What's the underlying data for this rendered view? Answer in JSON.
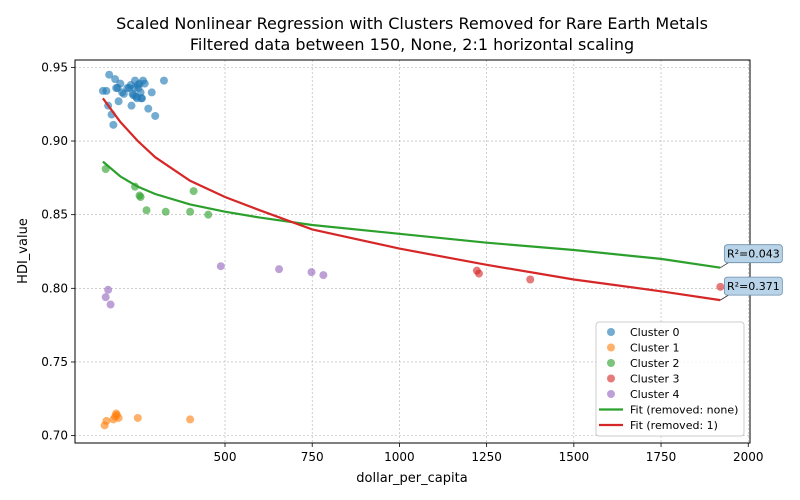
{
  "chart_data": {
    "type": "scatter",
    "title": "Scaled Nonlinear Regression with Clusters Removed for Rare Earth Metals",
    "subtitle": "Filtered data between 150, None, 2:1 horizontal scaling",
    "xlabel": "dollar_per_capita",
    "ylabel": "HDI_value",
    "xlim": [
      70,
      2005
    ],
    "ylim": [
      0.695,
      0.955
    ],
    "x_ticks": [
      500,
      750,
      1000,
      1250,
      1500,
      1750,
      2000
    ],
    "y_ticks": [
      0.7,
      0.75,
      0.8,
      0.85,
      0.9,
      0.95
    ],
    "grid": true,
    "legend_position": "lower right",
    "series": [
      {
        "name": "Cluster 0",
        "color": "#1f77b4",
        "x": [
          150,
          160,
          165,
          168,
          175,
          180,
          185,
          188,
          192,
          195,
          200,
          205,
          210,
          220,
          225,
          230,
          232,
          235,
          238,
          240,
          242,
          245,
          248,
          250,
          252,
          255,
          258,
          260,
          262,
          265,
          270,
          280,
          290,
          300,
          325
        ],
        "y": [
          0.934,
          0.934,
          0.924,
          0.945,
          0.918,
          0.911,
          0.942,
          0.936,
          0.936,
          0.927,
          0.939,
          0.933,
          0.932,
          0.936,
          0.936,
          0.938,
          0.924,
          0.932,
          0.931,
          0.936,
          0.941,
          0.93,
          0.929,
          0.938,
          0.936,
          0.939,
          0.933,
          0.929,
          0.929,
          0.941,
          0.939,
          0.922,
          0.933,
          0.917,
          0.941
        ]
      },
      {
        "name": "Cluster 1",
        "color": "#ff7f0e",
        "x": [
          155,
          160,
          180,
          185,
          188,
          190,
          195,
          250,
          400
        ],
        "y": [
          0.707,
          0.71,
          0.711,
          0.713,
          0.715,
          0.714,
          0.712,
          0.712,
          0.711
        ]
      },
      {
        "name": "Cluster 2",
        "color": "#2ca02c",
        "x": [
          158,
          242,
          255,
          258,
          275,
          330,
          400,
          410,
          452
        ],
        "y": [
          0.881,
          0.869,
          0.863,
          0.862,
          0.853,
          0.852,
          0.852,
          0.866,
          0.85
        ]
      },
      {
        "name": "Cluster 3",
        "color": "#d62728",
        "x": [
          1222,
          1228,
          1375,
          1920
        ],
        "y": [
          0.812,
          0.81,
          0.806,
          0.801
        ]
      },
      {
        "name": "Cluster 4",
        "color": "#9467bd",
        "x": [
          158,
          165,
          172,
          488,
          655,
          748,
          782
        ],
        "y": [
          0.794,
          0.799,
          0.789,
          0.815,
          0.813,
          0.811,
          0.809
        ]
      }
    ],
    "fits": [
      {
        "name": "Fit (removed: none)",
        "color": "#2ca02c",
        "x": [
          150,
          200,
          250,
          300,
          400,
          500,
          600,
          750,
          1000,
          1250,
          1500,
          1750,
          1920
        ],
        "y": [
          0.886,
          0.876,
          0.869,
          0.864,
          0.857,
          0.852,
          0.848,
          0.843,
          0.837,
          0.831,
          0.826,
          0.82,
          0.814
        ],
        "annotation": "R²=0.043"
      },
      {
        "name": "Fit (removed: 1)",
        "color": "#d62728",
        "x": [
          150,
          200,
          250,
          300,
          400,
          500,
          600,
          750,
          1000,
          1250,
          1500,
          1750,
          1920
        ],
        "y": [
          0.929,
          0.913,
          0.9,
          0.889,
          0.873,
          0.862,
          0.853,
          0.84,
          0.827,
          0.816,
          0.806,
          0.798,
          0.792
        ],
        "annotation": "R²=0.371"
      }
    ]
  }
}
